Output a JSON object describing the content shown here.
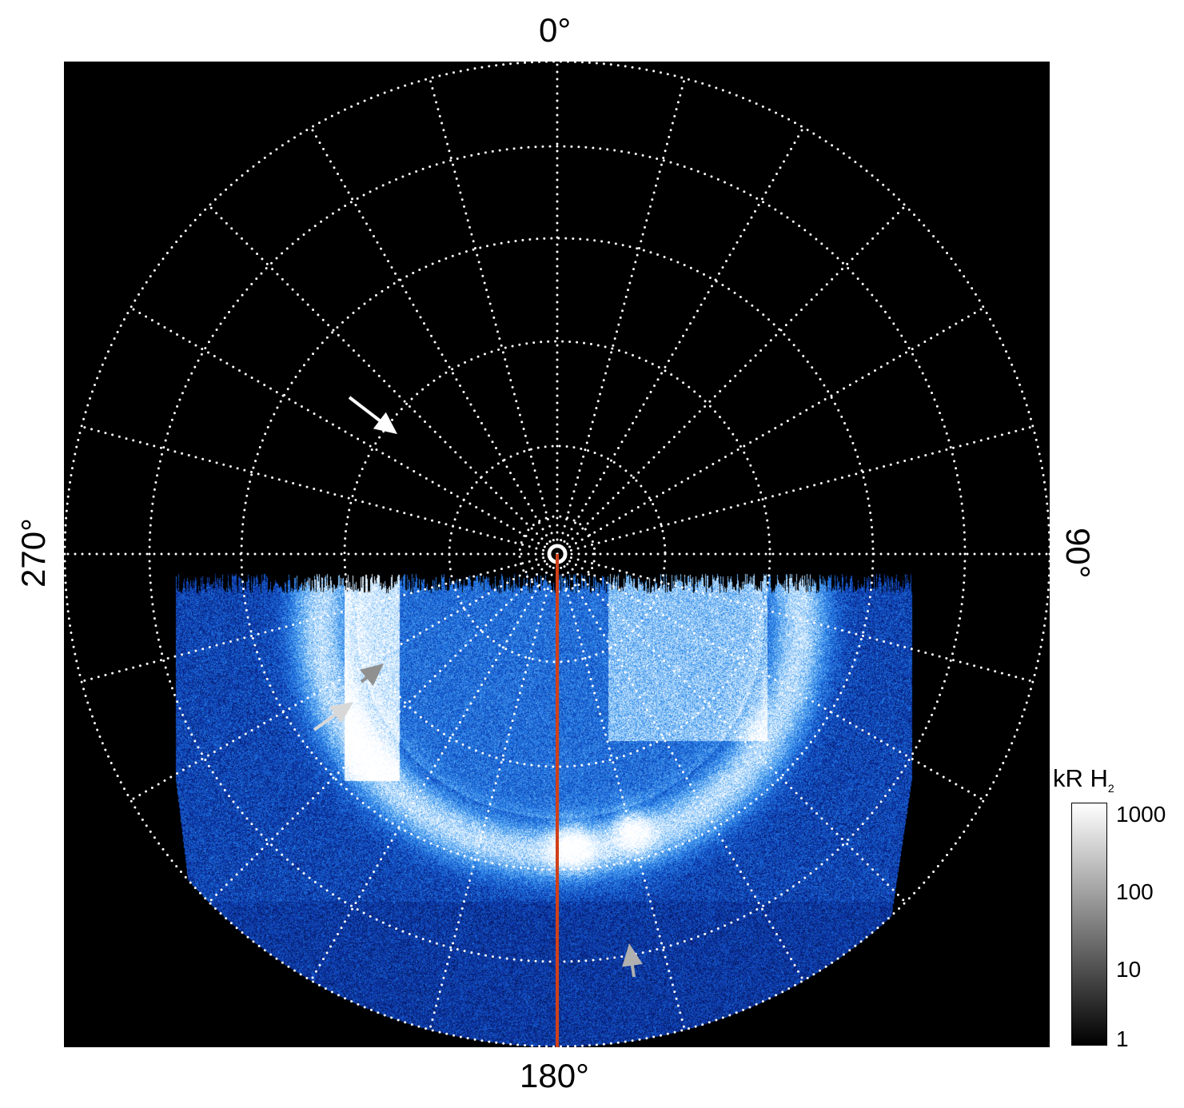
{
  "figure": {
    "longitude_labels": {
      "top": "0°",
      "right": "90°",
      "bottom": "180°",
      "left": "270°"
    },
    "grid": {
      "meridian_spacing_deg": 15,
      "parallels": 6,
      "style": "dotted",
      "color": "#ffffff"
    },
    "background_color": "#000000",
    "emission_colormap": [
      "#000000",
      "#0a2a9a",
      "#1a6fe0",
      "#5aaaf0",
      "#cfe8ff",
      "#ffffff"
    ],
    "reference_line_color": "#d0401a",
    "arrows": [
      {
        "color": "#ffffff"
      },
      {
        "color": "#d8d8d8"
      },
      {
        "color": "#909090"
      },
      {
        "color": "#b0b0b0"
      }
    ]
  },
  "colorbar": {
    "title": "kR H",
    "title_sub": "2",
    "scale": "log",
    "range": [
      1,
      1000
    ],
    "ticks": [
      "1000",
      "100",
      "10",
      "1"
    ],
    "colors": [
      "#000000",
      "#ffffff"
    ]
  }
}
